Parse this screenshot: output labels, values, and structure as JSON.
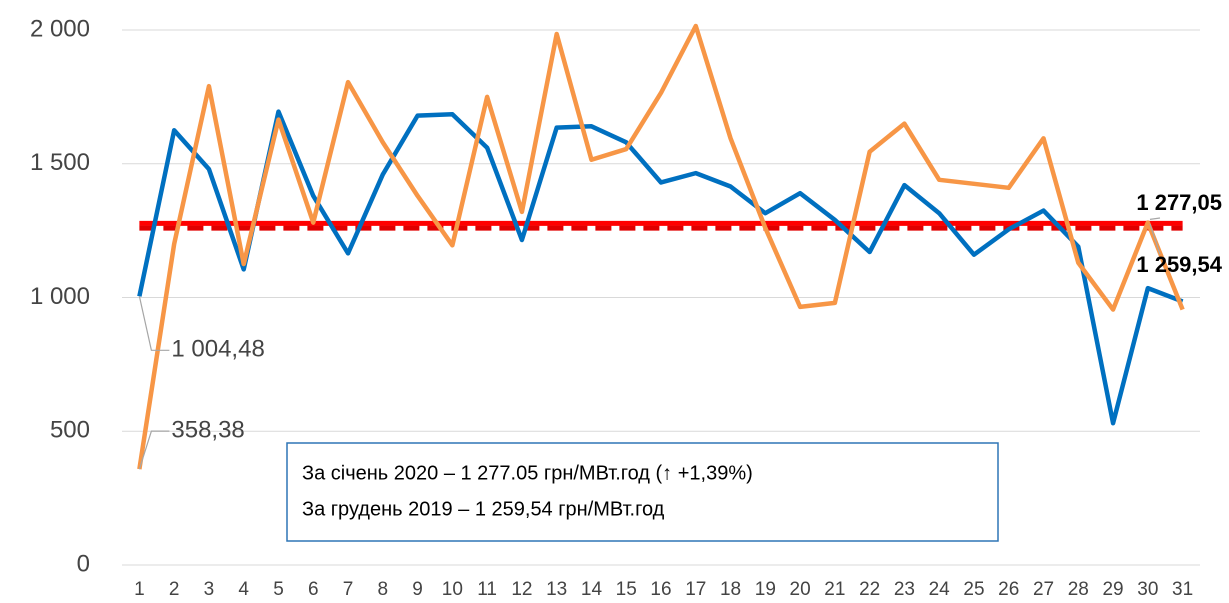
{
  "chart_data": {
    "type": "line",
    "categories": [
      "1",
      "2",
      "3",
      "4",
      "5",
      "6",
      "7",
      "8",
      "9",
      "10",
      "11",
      "12",
      "13",
      "14",
      "15",
      "16",
      "17",
      "18",
      "19",
      "20",
      "21",
      "22",
      "23",
      "24",
      "25",
      "26",
      "27",
      "28",
      "29",
      "30",
      "31"
    ],
    "series": [
      {
        "color": "#0070c0",
        "values": [
          1004.48,
          1625,
          1480,
          1105,
          1695,
          1380,
          1165,
          1460,
          1680,
          1685,
          1560,
          1215,
          1635,
          1640,
          1580,
          1430,
          1465,
          1415,
          1315,
          1390,
          1290,
          1170,
          1420,
          1315,
          1160,
          1255,
          1325,
          1190,
          530,
          1035,
          985
        ],
        "value_labels": [
          "1 004,48",
          null,
          null,
          null,
          null,
          null,
          null,
          null,
          null,
          null,
          null,
          null,
          null,
          null,
          null,
          null,
          null,
          null,
          null,
          null,
          null,
          null,
          null,
          null,
          null,
          null,
          null,
          null,
          null,
          null,
          null
        ]
      },
      {
        "color": "#f79646",
        "values": [
          358.38,
          1200,
          1790,
          1125,
          1665,
          1280,
          1805,
          1580,
          1380,
          1195,
          1750,
          1320,
          1985,
          1515,
          1555,
          1765,
          2015,
          1595,
          1260,
          965,
          980,
          1545,
          1650,
          1440,
          1425,
          1410,
          1595,
          1130,
          955,
          1280,
          955
        ],
        "value_labels": [
          "358,38",
          null,
          null,
          null,
          null,
          null,
          null,
          null,
          null,
          null,
          null,
          null,
          null,
          null,
          null,
          null,
          null,
          null,
          null,
          null,
          null,
          null,
          null,
          null,
          null,
          null,
          null,
          null,
          null,
          null,
          null
        ]
      }
    ],
    "averages": [
      {
        "value": 1277.05,
        "label": "1 277,05",
        "color": "#ff0000",
        "dashed": false
      },
      {
        "value": 1259.54,
        "label": "1 259,54",
        "color": "#e00000",
        "dashed": true
      }
    ],
    "annotations": [
      "За січень 2020 – 1 277.05 грн/МВт.год (↑ +1,39%)",
      "За грудень 2019 – 1 259,54 грн/МВт.год"
    ],
    "ylim": [
      0,
      2000
    ],
    "yticks": [
      0,
      500,
      {
        "value": 1000,
        "label": "1 000"
      },
      {
        "value": 1500,
        "label": "1 500"
      },
      {
        "value": 2000,
        "label": "2 000"
      }
    ],
    "grid": true
  }
}
